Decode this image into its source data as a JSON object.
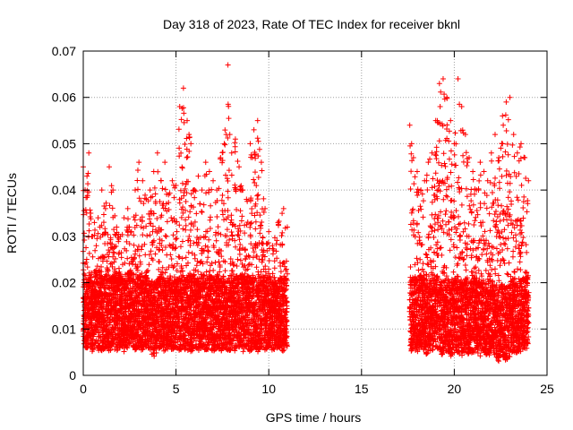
{
  "chart_data": {
    "type": "scatter",
    "title": "Day 318 of 2023, Rate Of TEC Index for receiver bknl",
    "xlabel": "GPS time / hours",
    "ylabel": "ROTI / TECUs",
    "xlim": [
      0,
      25
    ],
    "ylim": [
      0,
      0.07
    ],
    "x_ticks": [
      "0",
      "5",
      "10",
      "15",
      "20",
      "25"
    ],
    "y_ticks": [
      "0",
      "0.01",
      "0.02",
      "0.03",
      "0.04",
      "0.05",
      "0.06",
      "0.07"
    ],
    "grid": true,
    "legend": "none",
    "marker": "plus",
    "color": "#ff0000",
    "series": [
      {
        "x": [
          0.0,
          0.1,
          0.2,
          0.3,
          0.4,
          0.5,
          0.6,
          0.7,
          0.8,
          0.9,
          1.0,
          1.2,
          1.4,
          1.6,
          1.8,
          2.0,
          2.2,
          2.4,
          2.6,
          2.8,
          3.0,
          3.2,
          3.4,
          3.6,
          3.8,
          4.0,
          4.2,
          4.4,
          4.6,
          4.8,
          5.0,
          5.2,
          5.4,
          5.6,
          5.7,
          5.8,
          6.0,
          6.2,
          6.4,
          6.6,
          6.8,
          7.0,
          7.2,
          7.4,
          7.6,
          7.8,
          7.9,
          8.0,
          8.2,
          8.4,
          8.6,
          8.8,
          9.0,
          9.2,
          9.4,
          9.6,
          9.8,
          10.0,
          10.2,
          10.5,
          10.8,
          11.0,
          17.6,
          17.7,
          17.8,
          18.0,
          18.2,
          18.4,
          18.6,
          18.8,
          19.0,
          19.2,
          19.4,
          19.6,
          19.8,
          20.0,
          20.2,
          20.4,
          20.6,
          20.8,
          21.0,
          21.2,
          21.4,
          21.6,
          21.8,
          22.0,
          22.2,
          22.4,
          22.6,
          22.8,
          23.0,
          23.2,
          23.4,
          23.6,
          23.8,
          24.0
        ],
        "y_high": [
          0.045,
          0.04,
          0.043,
          0.048,
          0.035,
          0.03,
          0.033,
          0.028,
          0.034,
          0.032,
          0.04,
          0.036,
          0.045,
          0.04,
          0.032,
          0.03,
          0.034,
          0.036,
          0.031,
          0.04,
          0.046,
          0.042,
          0.038,
          0.04,
          0.044,
          0.048,
          0.042,
          0.046,
          0.039,
          0.042,
          0.041,
          0.058,
          0.062,
          0.055,
          0.052,
          0.05,
          0.04,
          0.043,
          0.04,
          0.046,
          0.044,
          0.042,
          0.04,
          0.047,
          0.05,
          0.067,
          0.052,
          0.048,
          0.051,
          0.045,
          0.04,
          0.038,
          0.05,
          0.053,
          0.055,
          0.046,
          0.036,
          0.031,
          0.028,
          0.033,
          0.036,
          0.032,
          0.054,
          0.05,
          0.047,
          0.044,
          0.04,
          0.042,
          0.046,
          0.048,
          0.055,
          0.063,
          0.064,
          0.06,
          0.055,
          0.05,
          0.064,
          0.058,
          0.052,
          0.047,
          0.044,
          0.04,
          0.046,
          0.044,
          0.042,
          0.048,
          0.052,
          0.047,
          0.056,
          0.059,
          0.06,
          0.052,
          0.048,
          0.05,
          0.047,
          0.042
        ],
        "y_low": [
          0.005,
          0.006,
          0.005,
          0.007,
          0.006,
          0.005,
          0.006,
          0.007,
          0.005,
          0.006,
          0.005,
          0.006,
          0.005,
          0.006,
          0.005,
          0.006,
          0.005,
          0.006,
          0.007,
          0.005,
          0.006,
          0.005,
          0.006,
          0.005,
          0.004,
          0.005,
          0.006,
          0.005,
          0.006,
          0.005,
          0.006,
          0.005,
          0.006,
          0.005,
          0.006,
          0.005,
          0.006,
          0.005,
          0.006,
          0.005,
          0.006,
          0.005,
          0.006,
          0.005,
          0.006,
          0.005,
          0.005,
          0.006,
          0.005,
          0.006,
          0.005,
          0.006,
          0.005,
          0.006,
          0.005,
          0.006,
          0.005,
          0.006,
          0.005,
          0.006,
          0.005,
          0.005,
          0.006,
          0.005,
          0.006,
          0.005,
          0.006,
          0.005,
          0.004,
          0.005,
          0.006,
          0.005,
          0.004,
          0.005,
          0.004,
          0.005,
          0.005,
          0.004,
          0.005,
          0.004,
          0.005,
          0.005,
          0.004,
          0.005,
          0.004,
          0.005,
          0.004,
          0.003,
          0.004,
          0.003,
          0.004,
          0.005,
          0.004,
          0.005,
          0.005,
          0.006
        ]
      }
    ],
    "data_gap_hours": [
      11.1,
      17.5
    ]
  }
}
